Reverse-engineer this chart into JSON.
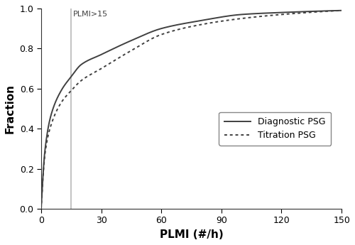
{
  "title": "",
  "xlabel": "PLMI (#/h)",
  "ylabel": "Fraction",
  "xlim": [
    0,
    150
  ],
  "ylim": [
    0.0,
    1.0
  ],
  "xticks": [
    0,
    30,
    60,
    90,
    120,
    150
  ],
  "yticks": [
    0.0,
    0.2,
    0.4,
    0.6,
    0.8,
    1.0
  ],
  "vline_x": 15,
  "vline_color": "#b8b8b8",
  "vline_label": "PLMI>15",
  "line_color": "#404040",
  "legend_labels": [
    "Diagnostic PSG",
    "Titration PSG"
  ],
  "background_color": "#ffffff",
  "diag_key_points_x": [
    0,
    2,
    5,
    10,
    15,
    20,
    30,
    45,
    60,
    80,
    100,
    120,
    150
  ],
  "diag_key_points_y": [
    0.0,
    0.3,
    0.47,
    0.59,
    0.66,
    0.72,
    0.77,
    0.84,
    0.9,
    0.94,
    0.97,
    0.98,
    0.99
  ],
  "titr_key_points_x": [
    0,
    2,
    5,
    10,
    15,
    20,
    30,
    45,
    60,
    80,
    100,
    120,
    150
  ],
  "titr_key_points_y": [
    0.0,
    0.28,
    0.42,
    0.53,
    0.59,
    0.64,
    0.7,
    0.79,
    0.87,
    0.92,
    0.95,
    0.97,
    0.99
  ]
}
